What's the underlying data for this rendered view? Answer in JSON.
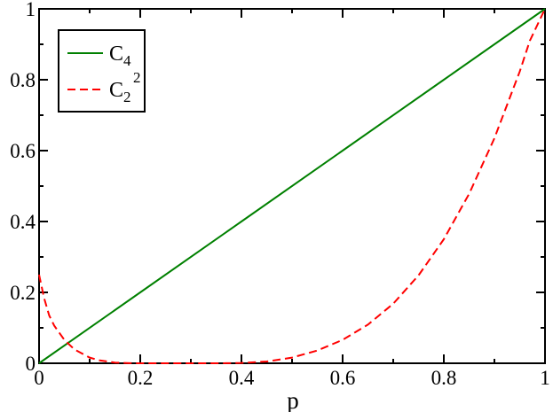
{
  "chart_data": {
    "type": "line",
    "title": "",
    "xlabel": "p",
    "ylabel": "",
    "xlim": [
      0,
      1
    ],
    "ylim": [
      0,
      1
    ],
    "grid": false,
    "legend_position": "top-left",
    "x_ticks": [
      "0",
      "0.2",
      "0.4",
      "0.6",
      "0.8",
      "1"
    ],
    "y_ticks": [
      "0",
      "0.2",
      "0.4",
      "0.6",
      "0.8",
      "1"
    ],
    "series": [
      {
        "name": "C4",
        "label_main": "C",
        "label_sub": "4",
        "label_sup": "",
        "color": "#008000",
        "style": "solid",
        "x": [
          0,
          0.2,
          0.4,
          0.6,
          0.8,
          1
        ],
        "y": [
          0,
          0.2,
          0.4,
          0.6,
          0.8,
          1
        ]
      },
      {
        "name": "C2^2",
        "label_main": "C",
        "label_sub": "2",
        "label_sup": "2",
        "color": "#ff0000",
        "style": "dashed",
        "x": [
          0,
          0.01,
          0.02,
          0.03,
          0.05,
          0.07,
          0.1,
          0.12,
          0.15,
          0.18,
          0.2,
          0.25,
          0.3,
          0.35,
          0.38,
          0.4,
          0.45,
          0.5,
          0.55,
          0.6,
          0.65,
          0.7,
          0.75,
          0.8,
          0.85,
          0.9,
          0.95,
          0.97,
          1
        ],
        "y": [
          0.25,
          0.184,
          0.135,
          0.106,
          0.066,
          0.039,
          0.016,
          0.008,
          0.002,
          0.0003,
          0,
          0,
          0,
          0,
          0.0003,
          0.001,
          0.005,
          0.016,
          0.036,
          0.066,
          0.109,
          0.168,
          0.248,
          0.35,
          0.478,
          0.635,
          0.823,
          0.91,
          1
        ]
      }
    ]
  }
}
